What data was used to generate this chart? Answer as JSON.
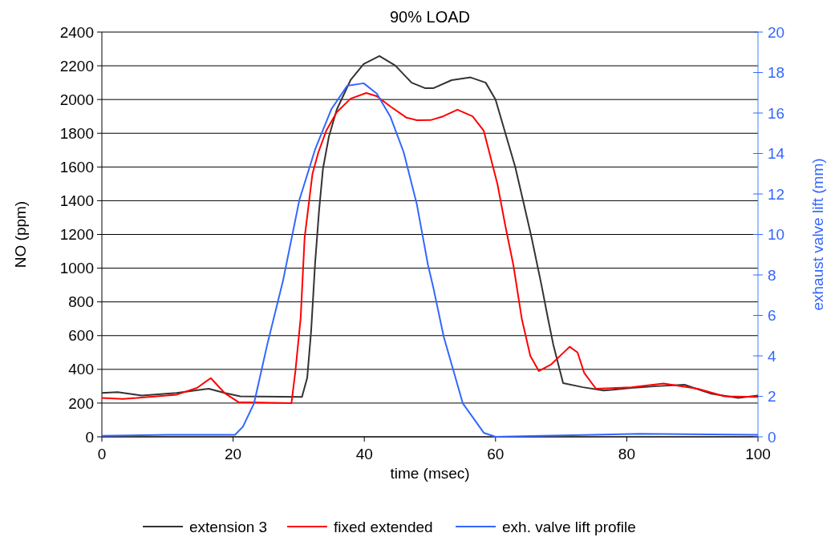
{
  "chart_data": {
    "type": "line",
    "title": "90% LOAD",
    "xlabel": "time (msec)",
    "ylabel": "NO (ppm)",
    "y2label": "exhaust valve lift (mm)",
    "xlim": [
      0,
      100
    ],
    "xticks": [
      0,
      20,
      40,
      60,
      80,
      100
    ],
    "ylim": [
      0,
      2400
    ],
    "yticks": [
      0,
      200,
      400,
      600,
      800,
      1000,
      1200,
      1400,
      1600,
      1800,
      2000,
      2200,
      2400
    ],
    "y2lim": [
      0,
      20
    ],
    "y2ticks": [
      0,
      2,
      4,
      6,
      8,
      10,
      12,
      14,
      16,
      18,
      20
    ],
    "grid": "y",
    "legend": "bottom",
    "marker": "none",
    "line_style": "solid",
    "series": [
      {
        "name": "extension 3",
        "color": "#333333",
        "x": [
          0,
          2.4,
          6.1,
          11.4,
          16.3,
          18.7,
          21.1,
          30.5,
          31.3,
          31.9,
          32.5,
          33.1,
          33.7,
          34.6,
          35.8,
          37.9,
          39.9,
          42.3,
          44.7,
          47.2,
          49.3,
          50.5,
          53.3,
          56.2,
          58.5,
          60,
          61.5,
          63,
          64.2,
          65.5,
          67,
          68,
          68.8,
          70.3,
          73.3,
          76.5,
          80.7,
          84.5,
          88.8,
          92.9,
          97,
          100
        ],
        "values": [
          260,
          265,
          245,
          260,
          285,
          260,
          240,
          236,
          350,
          630,
          1030,
          1340,
          1590,
          1780,
          1940,
          2115,
          2210,
          2258,
          2202,
          2100,
          2067,
          2067,
          2115,
          2131,
          2100,
          2000,
          1800,
          1600,
          1400,
          1180,
          900,
          700,
          547,
          318,
          294,
          274,
          290,
          300,
          309,
          255,
          230,
          245
        ]
      },
      {
        "name": "fixed extended",
        "color": "#ff0000",
        "x": [
          0,
          3.2,
          5.3,
          11.4,
          14.5,
          16.6,
          18.7,
          20.8,
          28.9,
          29.5,
          30.3,
          30.9,
          31.5,
          32.1,
          33,
          34.2,
          35.8,
          37.9,
          40.3,
          41.9,
          44,
          46.4,
          48,
          50.1,
          52,
          54.2,
          56.5,
          58.2,
          60.3,
          61.5,
          62.7,
          64,
          65.3,
          66.6,
          68.5,
          71.3,
          72.5,
          73.5,
          75.3,
          80.7,
          85.6,
          90.8,
          94.9,
          100
        ],
        "values": [
          230,
          225,
          230,
          250,
          290,
          348,
          260,
          206,
          200,
          390,
          705,
          1180,
          1370,
          1560,
          1687,
          1815,
          1925,
          2005,
          2039,
          2020,
          1958,
          1893,
          1877,
          1878,
          1900,
          1940,
          1900,
          1815,
          1497,
          1250,
          1022,
          700,
          480,
          390,
          430,
          534,
          500,
          380,
          285,
          294,
          316,
          285,
          240,
          236
        ]
      },
      {
        "name": "exh. valve lift profile",
        "color": "#3366ff",
        "axis": "y2",
        "x": [
          0,
          10,
          20.3,
          21.5,
          23.2,
          25.2,
          27.6,
          30.1,
          32.5,
          35,
          37.4,
          39.9,
          41.9,
          44,
          46,
          48,
          49.7,
          50.5,
          52.1,
          55,
          58.2,
          60,
          67,
          82,
          100
        ],
        "values": [
          0.05,
          0.1,
          0.1,
          0.5,
          1.66,
          4.55,
          7.7,
          11.7,
          14.2,
          16.2,
          17.35,
          17.47,
          16.96,
          15.8,
          14.06,
          11.5,
          8.5,
          7.4,
          4.95,
          1.66,
          0.2,
          0,
          0.05,
          0.15,
          0.1
        ]
      }
    ]
  }
}
